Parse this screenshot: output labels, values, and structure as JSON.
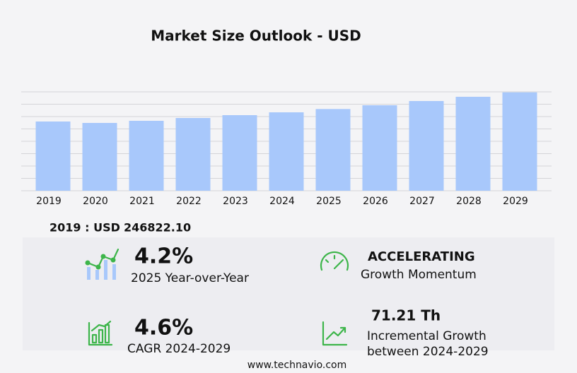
{
  "chart_data": {
    "type": "bar",
    "title": "Market Size Outlook  - USD",
    "categories": [
      "2019",
      "2020",
      "2021",
      "2022",
      "2023",
      "2024",
      "2025",
      "2026",
      "2027",
      "2028",
      "2029"
    ],
    "values": [
      246822.1,
      241790,
      249340,
      259420,
      269490,
      279570,
      291310,
      304750,
      319860,
      334970,
      350780
    ],
    "color": "#a8c8fb",
    "ylim": [
      0,
      352600
    ]
  },
  "summary": {
    "label": "2019 : USD",
    "value": "246822.10"
  },
  "cards": [
    {
      "value": "4.2%",
      "label": "2025 Year-over-Year"
    },
    {
      "value": "ACCELERATING",
      "label": "Growth Momentum"
    },
    {
      "value": "4.6%",
      "label": "CAGR 2024-2029"
    },
    {
      "value": "71.21 Th",
      "label": "Incremental Growth",
      "label2": "between 2024-2029"
    }
  ],
  "footer": "www.technavio.com"
}
